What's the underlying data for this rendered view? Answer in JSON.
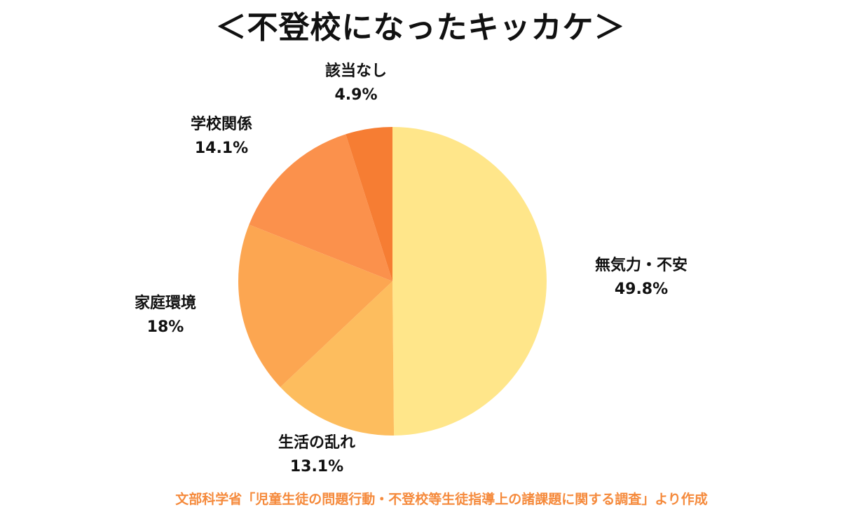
{
  "chart_data": {
    "type": "pie",
    "title": "＜不登校になったキッカケ＞",
    "categories": [
      "無気力・不安",
      "生活の乱れ",
      "家庭環境",
      "学校関係",
      "該当なし"
    ],
    "values": [
      49.8,
      13.1,
      18,
      14.1,
      4.9
    ],
    "value_labels": [
      "49.8%",
      "13.1%",
      "18%",
      "14.1%",
      "4.9%"
    ],
    "colors": [
      "#FFE68A",
      "#FDBD5E",
      "#FCA651",
      "#FB914C",
      "#F67D33"
    ],
    "start_angle": "12 o'clock",
    "direction": "clockwise",
    "legend": "none",
    "source": "文部科学省「児童生徒の問題行動・不登校等生徒指導上の諸課題に関する調査」より作成"
  },
  "colors": {
    "source_text": "#F58A3C",
    "title_text": "#111111"
  }
}
